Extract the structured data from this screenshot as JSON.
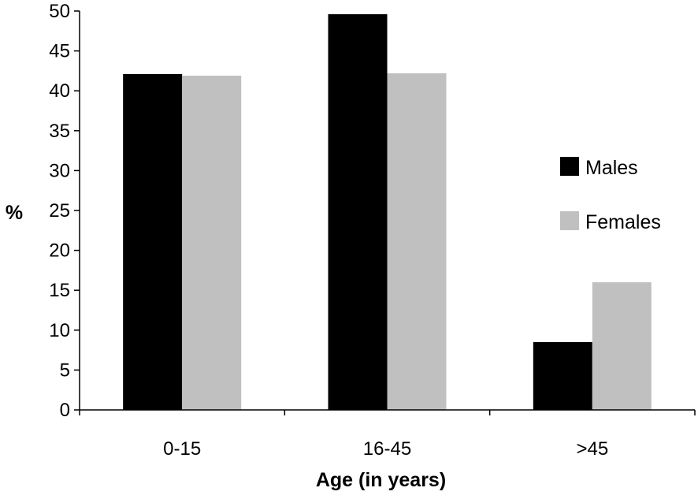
{
  "chart_data": {
    "type": "bar",
    "categories": [
      "0-15",
      "16-45",
      ">45"
    ],
    "series": [
      {
        "name": "Males",
        "color": "#000000",
        "values": [
          42.1,
          49.6,
          8.5
        ]
      },
      {
        "name": "Females",
        "color": "#c0c0c0",
        "values": [
          41.9,
          42.2,
          16.0
        ]
      }
    ],
    "xlabel": "Age (in years)",
    "ylabel": "%",
    "ylim": [
      0,
      50
    ],
    "yticks": [
      "0",
      "5",
      "10",
      "15",
      "20",
      "25",
      "30",
      "35",
      "40",
      "45",
      "50"
    ],
    "grid": false,
    "legend_position": "right"
  }
}
